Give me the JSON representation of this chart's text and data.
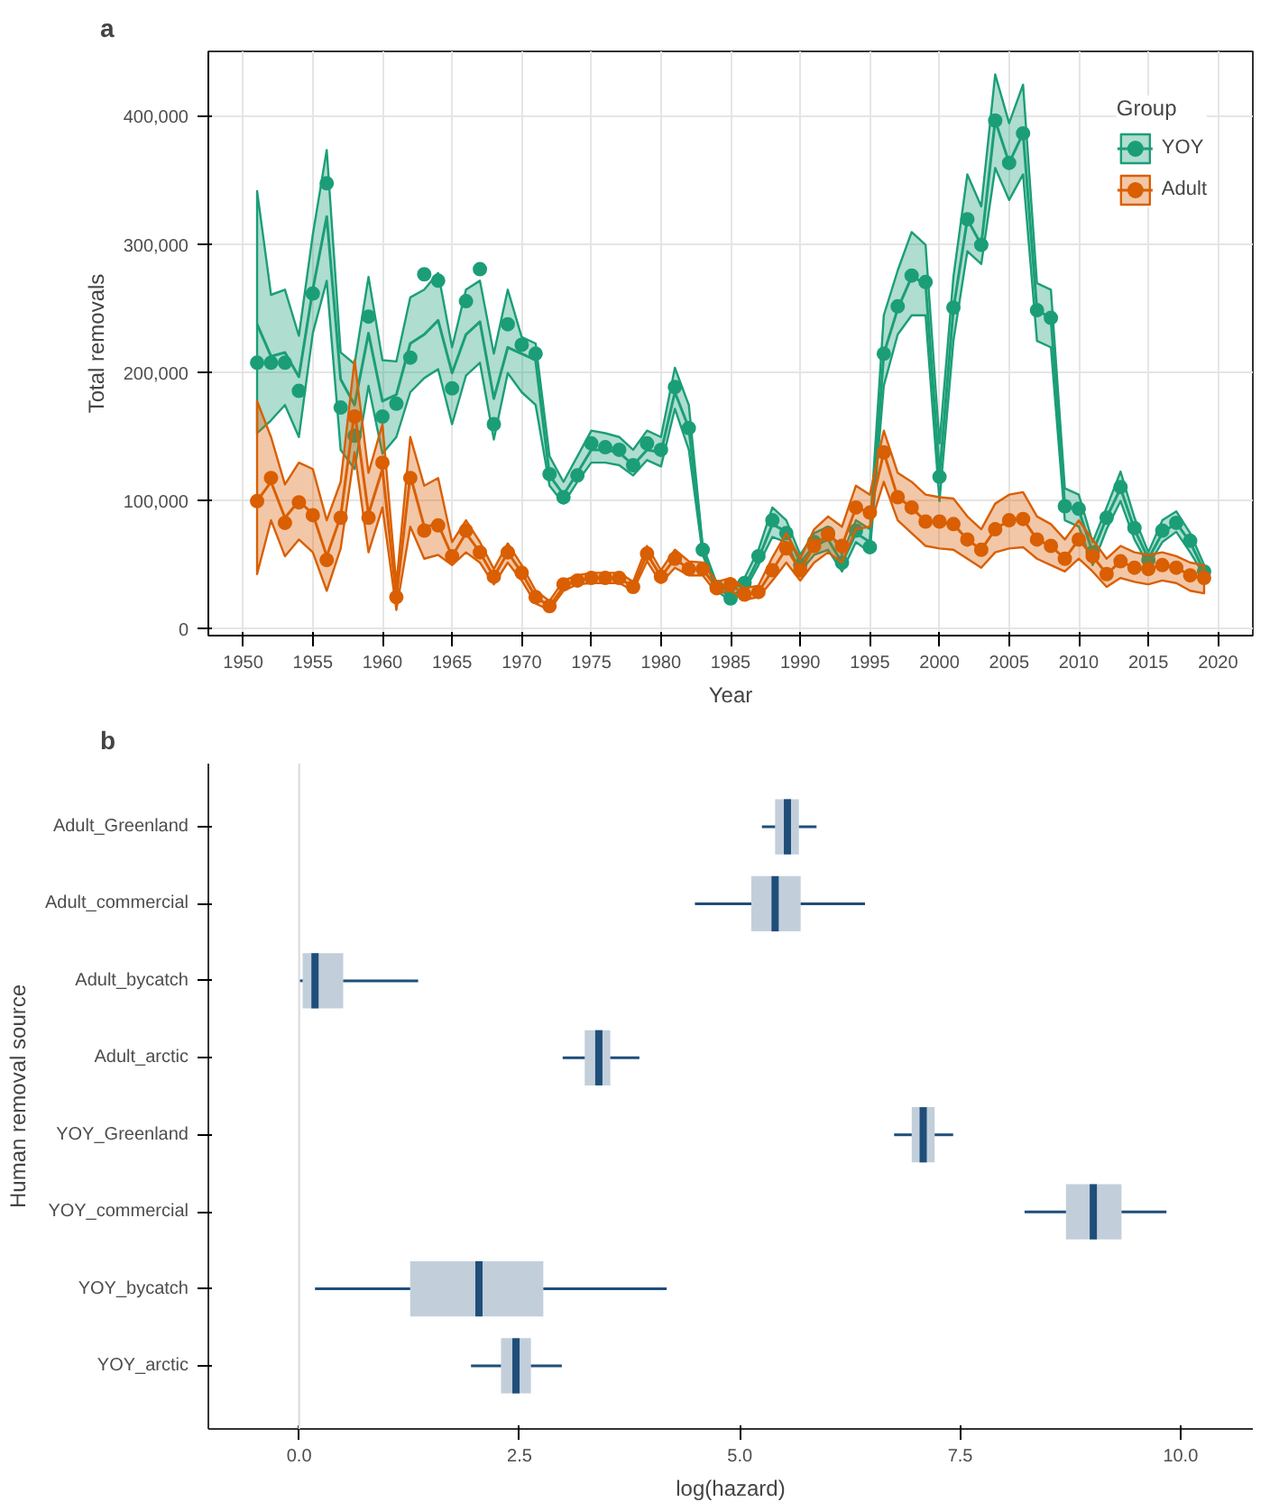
{
  "chart_data": [
    {
      "type": "line",
      "annotations": [
        "a"
      ],
      "xlabel": "Year",
      "ylabel": "Total removals",
      "legend_title": "Group",
      "legend": "top right",
      "grid": true,
      "marker": "circle",
      "xlim": [
        1947.5,
        2022.5
      ],
      "ylim": [
        -5000,
        451000
      ],
      "xticks": [
        1950,
        1955,
        1960,
        1965,
        1970,
        1975,
        1980,
        1985,
        1990,
        1995,
        2000,
        2005,
        2010,
        2015,
        2020
      ],
      "yticks": [
        {
          "value": 0,
          "label": "0"
        },
        {
          "value": 100000,
          "label": "100,000"
        },
        {
          "value": 200000,
          "label": "200,000"
        },
        {
          "value": 300000,
          "label": "300,000"
        },
        {
          "value": 400000,
          "label": "400,000"
        }
      ],
      "x": [
        1951,
        1952,
        1953,
        1954,
        1955,
        1956,
        1957,
        1958,
        1959,
        1960,
        1961,
        1962,
        1963,
        1964,
        1965,
        1966,
        1967,
        1968,
        1969,
        1970,
        1971,
        1972,
        1973,
        1974,
        1975,
        1976,
        1977,
        1978,
        1979,
        1980,
        1981,
        1982,
        1983,
        1984,
        1985,
        1986,
        1987,
        1988,
        1989,
        1990,
        1991,
        1992,
        1993,
        1994,
        1995,
        1996,
        1997,
        1998,
        1999,
        2000,
        2001,
        2002,
        2003,
        2004,
        2005,
        2006,
        2007,
        2008,
        2009,
        2010,
        2011,
        2012,
        2013,
        2014,
        2015,
        2016,
        2017,
        2018,
        2019
      ],
      "series": [
        {
          "name": "YOY",
          "type": "line",
          "marker": "none",
          "color": "#1b9e77",
          "values": [
            238000,
            213000,
            216000,
            197000,
            265000,
            322000,
            195000,
            175000,
            231000,
            178000,
            183000,
            223000,
            230000,
            241000,
            200000,
            230000,
            240000,
            180000,
            220000,
            215000,
            210000,
            120000,
            105000,
            122000,
            140000,
            140000,
            138000,
            128000,
            140000,
            138000,
            185000,
            157000,
            62000,
            33000,
            25000,
            33000,
            55000,
            82000,
            76000,
            52000,
            65000,
            70000,
            52000,
            75000,
            68000,
            215000,
            250000,
            275000,
            270000,
            120000,
            250000,
            320000,
            300000,
            397000,
            364000,
            387000,
            249000,
            243000,
            96000,
            93000,
            60000,
            87000,
            110000,
            78000,
            55000,
            75000,
            83000,
            68000,
            45000
          ],
          "lower": [
            153000,
            163000,
            175000,
            150000,
            231000,
            272000,
            140000,
            125000,
            190000,
            137000,
            150000,
            185000,
            196000,
            203000,
            160000,
            198000,
            208000,
            148000,
            200000,
            185000,
            175000,
            112000,
            98000,
            115000,
            130000,
            130000,
            128000,
            120000,
            132000,
            127000,
            172000,
            140000,
            58000,
            30000,
            22000,
            30000,
            50000,
            72000,
            68000,
            45000,
            58000,
            62000,
            45000,
            68000,
            60000,
            190000,
            230000,
            245000,
            245000,
            100000,
            225000,
            295000,
            285000,
            360000,
            335000,
            355000,
            225000,
            220000,
            85000,
            80000,
            50000,
            78000,
            100000,
            70000,
            50000,
            68000,
            76000,
            60000,
            42000
          ],
          "upper": [
            342000,
            261000,
            265000,
            229000,
            308000,
            374000,
            216000,
            207000,
            275000,
            210000,
            209000,
            259000,
            265000,
            278000,
            220000,
            265000,
            272000,
            215000,
            265000,
            228000,
            223000,
            135000,
            115000,
            135000,
            155000,
            153000,
            150000,
            140000,
            155000,
            150000,
            204000,
            175000,
            65000,
            36000,
            28000,
            40000,
            62000,
            95000,
            85000,
            58000,
            75000,
            80000,
            58000,
            85000,
            78000,
            245000,
            280000,
            310000,
            300000,
            145000,
            275000,
            355000,
            330000,
            433000,
            395000,
            425000,
            270000,
            265000,
            110000,
            105000,
            68000,
            95000,
            123000,
            87000,
            60000,
            85000,
            92000,
            75000,
            50000
          ]
        },
        {
          "type": "scatter",
          "color": "#1b9e77",
          "values": [
            208000,
            208000,
            208000,
            186000,
            262000,
            348000,
            173000,
            151000,
            244000,
            166000,
            176000,
            212000,
            277000,
            272000,
            188000,
            256000,
            281000,
            160000,
            238000,
            222000,
            215000,
            121000,
            103000,
            120000,
            145000,
            142000,
            140000,
            128000,
            145000,
            140000,
            189000,
            157000,
            62000,
            33000,
            24000,
            36000,
            57000,
            85000,
            75000,
            50000,
            68000,
            75000,
            52000,
            77000,
            64000,
            215000,
            252000,
            276000,
            271000,
            119000,
            251000,
            320000,
            300000,
            397000,
            364000,
            387000,
            249000,
            243000,
            96000,
            94000,
            60000,
            87000,
            111000,
            79000,
            54000,
            77000,
            83000,
            69000,
            45000
          ]
        },
        {
          "name": "Adult",
          "type": "line",
          "marker": "none",
          "color": "#d95f02",
          "values": [
            100000,
            115000,
            87000,
            100000,
            90000,
            57000,
            88000,
            170000,
            90000,
            125000,
            25000,
            120000,
            80000,
            82000,
            57000,
            75000,
            60000,
            41000,
            60000,
            44000,
            25000,
            18000,
            33000,
            38000,
            40000,
            40000,
            40000,
            33000,
            59000,
            41000,
            55000,
            47000,
            47000,
            32000,
            35000,
            27000,
            29000,
            46000,
            63000,
            46000,
            65000,
            74000,
            65000,
            95000,
            91000,
            138000,
            103000,
            95000,
            84000,
            84000,
            82000,
            70000,
            62000,
            78000,
            85000,
            86000,
            70000,
            65000,
            55000,
            70000,
            57000,
            43000,
            53000,
            48000,
            47000,
            50000,
            48000,
            42000,
            40000
          ],
          "lower": [
            43000,
            85000,
            57000,
            70000,
            60000,
            30000,
            63000,
            138000,
            60000,
            95000,
            15000,
            80000,
            55000,
            58000,
            50000,
            60000,
            52000,
            35000,
            52000,
            38000,
            20000,
            15000,
            30000,
            35000,
            36000,
            36000,
            36000,
            30000,
            53000,
            36000,
            48000,
            42000,
            42000,
            28000,
            30000,
            23000,
            25000,
            38000,
            52000,
            38000,
            52000,
            60000,
            52000,
            78000,
            80000,
            115000,
            85000,
            75000,
            65000,
            63000,
            62000,
            55000,
            48000,
            60000,
            63000,
            64000,
            55000,
            50000,
            45000,
            55000,
            45000,
            33000,
            40000,
            37000,
            35000,
            38000,
            36000,
            30000,
            28000
          ],
          "upper": [
            178000,
            150000,
            113000,
            130000,
            125000,
            85000,
            115000,
            210000,
            122000,
            160000,
            35000,
            150000,
            112000,
            118000,
            68000,
            85000,
            68000,
            47000,
            67000,
            50000,
            30000,
            22000,
            38000,
            42000,
            44000,
            44000,
            44000,
            37000,
            65000,
            46000,
            62000,
            53000,
            52000,
            37000,
            40000,
            32000,
            34000,
            56000,
            75000,
            55000,
            78000,
            88000,
            80000,
            112000,
            105000,
            155000,
            122000,
            115000,
            105000,
            103000,
            102000,
            88000,
            78000,
            98000,
            105000,
            107000,
            88000,
            82000,
            70000,
            85000,
            70000,
            55000,
            65000,
            60000,
            58000,
            60000,
            57000,
            52000,
            50000
          ]
        },
        {
          "type": "scatter",
          "color": "#d95f02",
          "values": [
            100000,
            118000,
            83000,
            99000,
            89000,
            54000,
            87000,
            166000,
            87000,
            130000,
            25000,
            118000,
            77000,
            81000,
            57000,
            77000,
            60000,
            41000,
            60000,
            44000,
            25000,
            18000,
            35000,
            38000,
            40000,
            40000,
            40000,
            33000,
            59000,
            41000,
            55000,
            47000,
            47000,
            32000,
            35000,
            27000,
            29000,
            46000,
            63000,
            46000,
            65000,
            74000,
            65000,
            95000,
            91000,
            138000,
            103000,
            95000,
            84000,
            84000,
            82000,
            70000,
            62000,
            78000,
            85000,
            86000,
            70000,
            65000,
            55000,
            70000,
            57000,
            43000,
            53000,
            48000,
            47000,
            50000,
            48000,
            42000,
            40000
          ]
        }
      ]
    },
    {
      "type": "box",
      "orientation": "horizontal",
      "annotations": [
        "b"
      ],
      "xlabel": "log(hazard)",
      "ylabel": "Human removal source",
      "grid": false,
      "categories": [
        "Adult_Greenland",
        "Adult_commercial",
        "Adult_bycatch",
        "Adult_arctic",
        "YOY_Greenland",
        "YOY_commercial",
        "YOY_bycatch",
        "YOY_arctic"
      ],
      "xlim": [
        -1.03,
        10.82
      ],
      "xticks": [
        {
          "value": 0,
          "label": "0.0"
        },
        {
          "value": 2.5,
          "label": "2.5"
        },
        {
          "value": 5,
          "label": "5.0"
        },
        {
          "value": 7.5,
          "label": "7.5"
        },
        {
          "value": 10,
          "label": "10.0"
        }
      ],
      "ref_lines": [
        {
          "axis": "x",
          "value": 0,
          "color": "#d9d9d9"
        }
      ],
      "series": [
        {
          "color": "#1f4e79",
          "boxes": [
            {
              "low": 5.25,
              "q1": 5.4,
              "median": 5.54,
              "q3": 5.67,
              "high": 5.87
            },
            {
              "low": 4.49,
              "q1": 5.13,
              "median": 5.4,
              "q3": 5.69,
              "high": 6.42
            },
            {
              "low": 0.0,
              "q1": 0.04,
              "median": 0.18,
              "q3": 0.5,
              "high": 1.35
            },
            {
              "low": 2.99,
              "q1": 3.24,
              "median": 3.4,
              "q3": 3.53,
              "high": 3.86
            },
            {
              "low": 6.75,
              "q1": 6.95,
              "median": 7.08,
              "q3": 7.21,
              "high": 7.42
            },
            {
              "low": 8.23,
              "q1": 8.7,
              "median": 9.01,
              "q3": 9.33,
              "high": 9.84
            },
            {
              "low": 0.18,
              "q1": 1.26,
              "median": 2.04,
              "q3": 2.77,
              "high": 4.17
            },
            {
              "low": 1.95,
              "q1": 2.29,
              "median": 2.46,
              "q3": 2.63,
              "high": 2.98
            }
          ]
        }
      ]
    }
  ]
}
